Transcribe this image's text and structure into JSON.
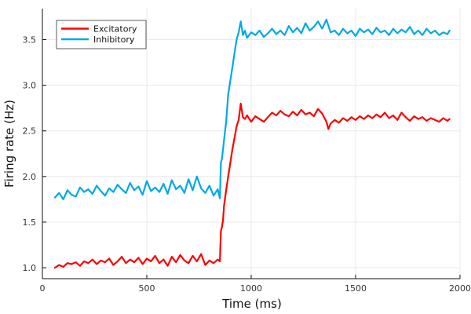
{
  "chart_data": {
    "type": "line",
    "xlabel": "Time (ms)",
    "ylabel": "Firing rate (Hz)",
    "xlim": [
      0,
      2000
    ],
    "ylim": [
      0.88,
      3.84
    ],
    "xticks": [
      0,
      500,
      1000,
      1500,
      2000
    ],
    "yticks": [
      1.0,
      1.5,
      2.0,
      2.5,
      3.0,
      3.5
    ],
    "xtick_labels": [
      "0",
      "500",
      "1000",
      "1500",
      "2000"
    ],
    "ytick_labels": [
      "1.0",
      "1.5",
      "2.0",
      "2.5",
      "3.0",
      "3.5"
    ],
    "grid": true,
    "legend_position": "top-left",
    "series": [
      {
        "name": "Excitatory",
        "color": "#ff0000",
        "x": [
          60,
          80,
          100,
          120,
          140,
          160,
          180,
          200,
          220,
          240,
          260,
          280,
          300,
          320,
          340,
          360,
          380,
          400,
          420,
          440,
          460,
          480,
          500,
          520,
          540,
          560,
          580,
          600,
          620,
          640,
          660,
          680,
          700,
          720,
          740,
          760,
          780,
          800,
          820,
          840,
          850,
          855,
          860,
          865,
          870,
          880,
          890,
          900,
          910,
          920,
          930,
          940,
          950,
          960,
          970,
          980,
          1000,
          1020,
          1040,
          1060,
          1080,
          1100,
          1120,
          1140,
          1160,
          1180,
          1200,
          1220,
          1240,
          1260,
          1280,
          1300,
          1320,
          1340,
          1360,
          1370,
          1380,
          1400,
          1420,
          1440,
          1460,
          1480,
          1500,
          1520,
          1540,
          1560,
          1580,
          1600,
          1620,
          1640,
          1660,
          1680,
          1700,
          1720,
          1740,
          1760,
          1780,
          1800,
          1820,
          1840,
          1860,
          1880,
          1900,
          1920,
          1940,
          1950
        ],
        "values": [
          1.0,
          1.03,
          1.01,
          1.05,
          1.04,
          1.06,
          1.02,
          1.07,
          1.05,
          1.09,
          1.04,
          1.08,
          1.06,
          1.1,
          1.03,
          1.07,
          1.12,
          1.05,
          1.09,
          1.06,
          1.11,
          1.04,
          1.1,
          1.07,
          1.13,
          1.05,
          1.09,
          1.02,
          1.12,
          1.06,
          1.14,
          1.08,
          1.05,
          1.13,
          1.07,
          1.15,
          1.03,
          1.08,
          1.05,
          1.09,
          1.07,
          1.4,
          1.45,
          1.52,
          1.68,
          1.85,
          2.0,
          2.15,
          2.3,
          2.42,
          2.55,
          2.62,
          2.8,
          2.65,
          2.63,
          2.67,
          2.6,
          2.66,
          2.63,
          2.6,
          2.65,
          2.7,
          2.67,
          2.72,
          2.68,
          2.66,
          2.71,
          2.67,
          2.73,
          2.68,
          2.7,
          2.66,
          2.74,
          2.69,
          2.6,
          2.52,
          2.58,
          2.62,
          2.59,
          2.64,
          2.61,
          2.65,
          2.62,
          2.66,
          2.63,
          2.67,
          2.64,
          2.68,
          2.65,
          2.7,
          2.64,
          2.67,
          2.62,
          2.7,
          2.65,
          2.61,
          2.66,
          2.63,
          2.65,
          2.61,
          2.64,
          2.62,
          2.6,
          2.64,
          2.61,
          2.63
        ]
      },
      {
        "name": "Inhibitory",
        "color": "#00a9e6",
        "x": [
          60,
          80,
          100,
          120,
          140,
          160,
          180,
          200,
          220,
          240,
          260,
          280,
          300,
          320,
          340,
          360,
          380,
          400,
          420,
          440,
          460,
          480,
          500,
          520,
          540,
          560,
          580,
          600,
          620,
          640,
          660,
          680,
          700,
          720,
          740,
          760,
          780,
          800,
          820,
          840,
          850,
          855,
          860,
          870,
          880,
          890,
          900,
          910,
          920,
          930,
          940,
          950,
          960,
          970,
          980,
          1000,
          1020,
          1040,
          1060,
          1080,
          1100,
          1120,
          1140,
          1160,
          1180,
          1200,
          1220,
          1240,
          1260,
          1280,
          1300,
          1320,
          1340,
          1360,
          1380,
          1400,
          1420,
          1440,
          1460,
          1480,
          1500,
          1520,
          1540,
          1560,
          1580,
          1600,
          1620,
          1640,
          1660,
          1680,
          1700,
          1720,
          1740,
          1760,
          1780,
          1800,
          1820,
          1840,
          1860,
          1880,
          1900,
          1920,
          1940,
          1950
        ],
        "values": [
          1.77,
          1.82,
          1.75,
          1.85,
          1.8,
          1.78,
          1.88,
          1.83,
          1.86,
          1.81,
          1.9,
          1.84,
          1.79,
          1.87,
          1.83,
          1.91,
          1.86,
          1.82,
          1.93,
          1.85,
          1.89,
          1.8,
          1.95,
          1.84,
          1.88,
          1.83,
          1.92,
          1.81,
          1.96,
          1.86,
          1.9,
          1.82,
          1.97,
          1.85,
          2.0,
          1.87,
          1.82,
          1.9,
          1.79,
          1.86,
          1.76,
          2.15,
          2.2,
          2.4,
          2.6,
          2.9,
          3.05,
          3.2,
          3.35,
          3.5,
          3.58,
          3.7,
          3.55,
          3.6,
          3.52,
          3.58,
          3.55,
          3.6,
          3.53,
          3.57,
          3.62,
          3.56,
          3.6,
          3.55,
          3.65,
          3.58,
          3.63,
          3.57,
          3.68,
          3.6,
          3.64,
          3.7,
          3.62,
          3.72,
          3.58,
          3.6,
          3.55,
          3.62,
          3.57,
          3.6,
          3.54,
          3.62,
          3.58,
          3.61,
          3.56,
          3.63,
          3.58,
          3.6,
          3.55,
          3.62,
          3.57,
          3.61,
          3.58,
          3.64,
          3.56,
          3.6,
          3.55,
          3.62,
          3.57,
          3.6,
          3.55,
          3.58,
          3.56,
          3.6
        ]
      }
    ]
  }
}
